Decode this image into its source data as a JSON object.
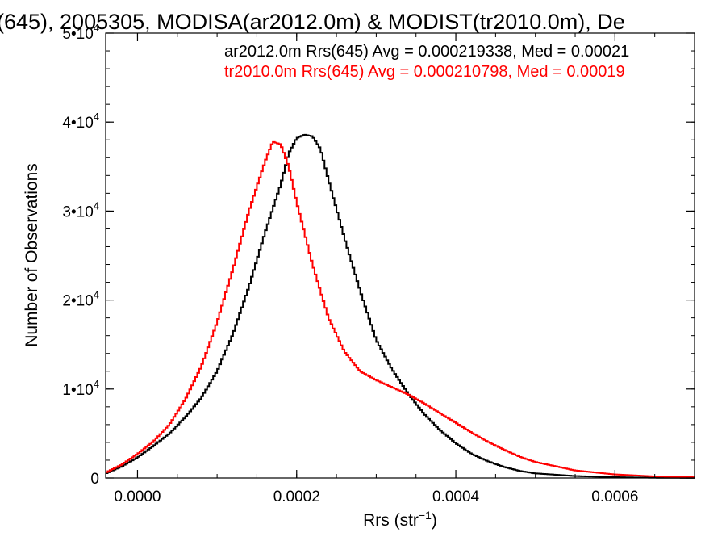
{
  "chart_data": {
    "type": "line",
    "title": "(645), 2005305, MODISA(ar2012.0m) & MODIST(tr2010.0m), De",
    "xlabel": "Rrs (str",
    "xlabel_sup": "−1",
    "xlabel_close": ")",
    "ylabel": "Number of Observations",
    "xlim": [
      -4e-05,
      0.0007
    ],
    "ylim": [
      0,
      50000
    ],
    "xticks": [
      {
        "value": 0.0,
        "label": "0.0000"
      },
      {
        "value": 0.0002,
        "label": "0.0002"
      },
      {
        "value": 0.0004,
        "label": "0.0004"
      },
      {
        "value": 0.0006,
        "label": "0.0006"
      }
    ],
    "yticks": [
      {
        "value": 0,
        "base": "0",
        "exp": ""
      },
      {
        "value": 10000,
        "base": "1•10",
        "exp": "4"
      },
      {
        "value": 20000,
        "base": "2•10",
        "exp": "4"
      },
      {
        "value": 30000,
        "base": "3•10",
        "exp": "4"
      },
      {
        "value": 40000,
        "base": "4•10",
        "exp": "4"
      },
      {
        "value": 50000,
        "base": "5•10",
        "exp": "4"
      }
    ],
    "grid": false,
    "legend_position": "top-right",
    "series": [
      {
        "name": "ar2012.0m Rrs(645) Avg = 0.000219338, Med = 0.00021",
        "color": "#000000",
        "points": [
          [
            -4e-05,
            500
          ],
          [
            -2e-05,
            1300
          ],
          [
            0.0,
            2300
          ],
          [
            2e-05,
            3600
          ],
          [
            4e-05,
            5000
          ],
          [
            6e-05,
            6800
          ],
          [
            8e-05,
            9000
          ],
          [
            0.0001,
            12000
          ],
          [
            0.00012,
            16200
          ],
          [
            0.00014,
            21500
          ],
          [
            0.00016,
            27500
          ],
          [
            0.00018,
            33000
          ],
          [
            0.00019,
            36500
          ],
          [
            0.0002,
            38200
          ],
          [
            0.00021,
            38600
          ],
          [
            0.00022,
            38400
          ],
          [
            0.00023,
            37000
          ],
          [
            0.00024,
            33500
          ],
          [
            0.00026,
            27000
          ],
          [
            0.00028,
            21000
          ],
          [
            0.0003,
            15500
          ],
          [
            0.00032,
            12200
          ],
          [
            0.00034,
            9500
          ],
          [
            0.00036,
            7200
          ],
          [
            0.00038,
            5400
          ],
          [
            0.0004,
            3900
          ],
          [
            0.00042,
            2700
          ],
          [
            0.00044,
            1900
          ],
          [
            0.00046,
            1250
          ],
          [
            0.00048,
            800
          ],
          [
            0.0005,
            520
          ],
          [
            0.00055,
            220
          ],
          [
            0.0006,
            90
          ],
          [
            0.00065,
            30
          ],
          [
            0.0007,
            10
          ]
        ]
      },
      {
        "name": "tr2010.0m Rrs(645) Avg = 0.000210798, Med = 0.00019",
        "color": "#ff0000",
        "points": [
          [
            -4e-05,
            600
          ],
          [
            -2e-05,
            1500
          ],
          [
            0.0,
            2700
          ],
          [
            2e-05,
            4100
          ],
          [
            4e-05,
            6000
          ],
          [
            6e-05,
            8800
          ],
          [
            8e-05,
            12500
          ],
          [
            0.0001,
            17500
          ],
          [
            0.00012,
            23500
          ],
          [
            0.00014,
            30000
          ],
          [
            0.00016,
            35500
          ],
          [
            0.00017,
            37800
          ],
          [
            0.00018,
            37500
          ],
          [
            0.00019,
            35000
          ],
          [
            0.0002,
            31000
          ],
          [
            0.00022,
            24000
          ],
          [
            0.00024,
            18000
          ],
          [
            0.00026,
            14200
          ],
          [
            0.00028,
            12000
          ],
          [
            0.0003,
            11000
          ],
          [
            0.00032,
            10200
          ],
          [
            0.00034,
            9400
          ],
          [
            0.00036,
            8400
          ],
          [
            0.00038,
            7300
          ],
          [
            0.0004,
            6200
          ],
          [
            0.00042,
            5100
          ],
          [
            0.00044,
            4100
          ],
          [
            0.00046,
            3200
          ],
          [
            0.00048,
            2400
          ],
          [
            0.0005,
            1800
          ],
          [
            0.00055,
            850
          ],
          [
            0.0006,
            400
          ],
          [
            0.00065,
            180
          ],
          [
            0.0007,
            80
          ]
        ]
      }
    ]
  }
}
